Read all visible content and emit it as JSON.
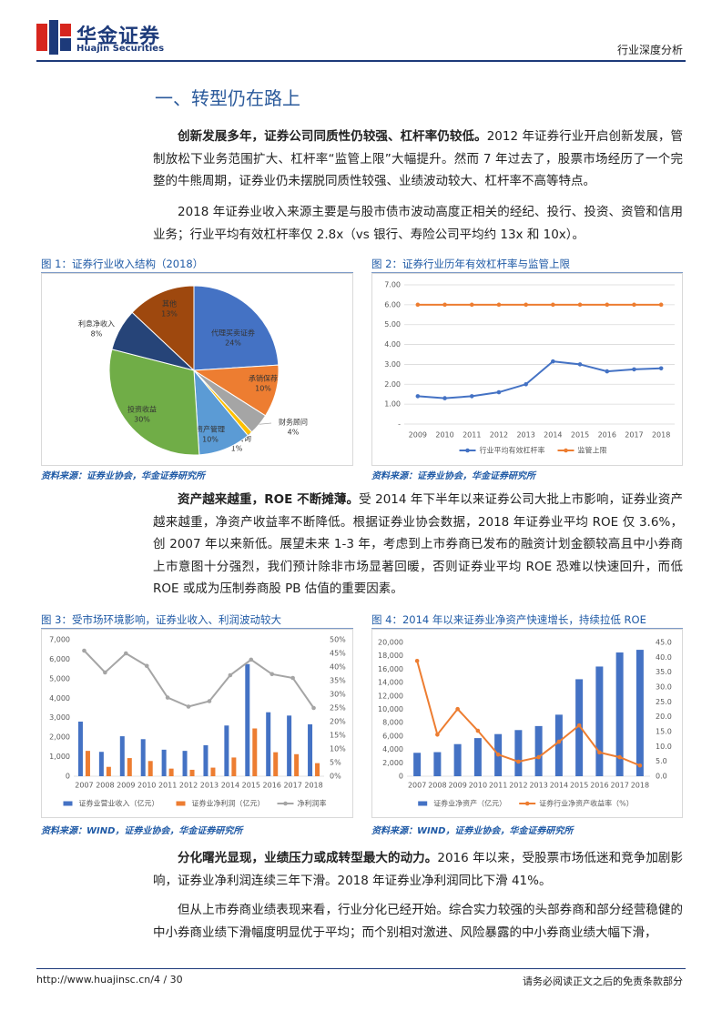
{
  "header": {
    "logo_cn": "华金证券",
    "logo_en": "Huajin Securities",
    "report_type": "行业深度分析"
  },
  "section_title": "一、转型仍在路上",
  "paragraphs": [
    {
      "lead": "创新发展多年，证券公司同质性仍较强、杠杆率仍较低。",
      "text": "2012 年证券行业开启创新发展，管制放松下业务范围扩大、杠杆率“监管上限”大幅提升。然而 7 年过去了，股票市场经历了一个完整的牛熊周期，证券业仍未摆脱同质性较强、业绩波动较大、杠杆率不高等特点。"
    },
    {
      "text": "2018 年证券业收入来源主要是与股市债市波动高度正相关的经纪、投行、投资、资管和信用业务；行业平均有效杠杆率仅 2.8x（vs 银行、寿险公司平均约 13x 和 10x）。"
    },
    {
      "lead": "资产越来越重，ROE 不断摊薄。",
      "text": "受 2014 年下半年以来证券公司大批上市影响，证券业资产越来越重，净资产收益率不断降低。根据证券业协会数据，2018 年证券业平均 ROE 仅 3.6%，创 2007 年以来新低。展望未来 1-3 年，考虑到上市券商已发布的融资计划金额较高且中小券商上市意图十分强烈，我们预计除非市场显著回暖，否则证券业平均 ROE 恐难以快速回升，而低 ROE 或成为压制券商股 PB 估值的重要因素。"
    },
    {
      "lead": "分化曙光显现，业绩压力或成转型最大的动力。",
      "text": "2016 年以来，受股票市场低迷和竞争加剧影响，证券业净利润连续三年下滑。2018 年证券业净利润同比下滑 41%。"
    },
    {
      "text": "但从上市券商业绩表现来看，行业分化已经开始。综合实力较强的头部券商和部分经营稳健的中小券商业绩下滑幅度明显优于平均；而个别相对激进、风险暴露的中小券商业绩大幅下滑，"
    }
  ],
  "chart_data": [
    {
      "type": "pie",
      "title": "图 1：证券行业收入结构（2018）",
      "source": "资料来源：证券业协会，华金证券研究所",
      "categories": [
        "代理买卖证券",
        "承销保荐",
        "财务顾问",
        "投资咨询",
        "资产管理",
        "投资收益",
        "利息净收入",
        "其他"
      ],
      "values": [
        24,
        10,
        4,
        1,
        10,
        30,
        8,
        13
      ],
      "value_labels": [
        "24%",
        "10%",
        "4%",
        "1%",
        "10%",
        "30%",
        "8%",
        "13%"
      ],
      "colors": [
        "#4472c4",
        "#ed7d31",
        "#a5a5a5",
        "#ffc000",
        "#5b9bd5",
        "#70ad47",
        "#264478",
        "#9e480e"
      ]
    },
    {
      "type": "line",
      "title": "图 2：证券行业历年有效杠杆率与监管上限",
      "source": "资料来源：证券业协会，华金证券研究所",
      "categories": [
        "2009",
        "2010",
        "2011",
        "2012",
        "2013",
        "2014",
        "2015",
        "2016",
        "2017",
        "2018"
      ],
      "series": [
        {
          "name": "行业平均有效杠杆率",
          "color": "#4472c4",
          "values": [
            1.4,
            1.3,
            1.4,
            1.6,
            2.0,
            3.15,
            3.0,
            2.65,
            2.75,
            2.8
          ]
        },
        {
          "name": "监管上限",
          "color": "#ed7d31",
          "values": [
            6,
            6,
            6,
            6,
            6,
            6,
            6,
            6,
            6,
            6
          ]
        }
      ],
      "ylim": [
        0,
        7
      ],
      "yticks": [
        {
          "value": 0,
          "label": "-"
        },
        {
          "value": 1,
          "label": "1.00"
        },
        {
          "value": 2,
          "label": "2.00"
        },
        {
          "value": 3,
          "label": "3.00"
        },
        {
          "value": 4,
          "label": "4.00"
        },
        {
          "value": 5,
          "label": "5.00"
        },
        {
          "value": 6,
          "label": "6.00"
        },
        {
          "value": 7,
          "label": "7.00"
        }
      ],
      "grid": true
    },
    {
      "type": "combo",
      "title": "图 3：受市场环境影响，证券业收入、利润波动较大",
      "source": "资料来源：WIND，证券业协会，华金证券研究所",
      "categories": [
        "2007",
        "2008",
        "2009",
        "2010",
        "2011",
        "2012",
        "2013",
        "2014",
        "2015",
        "2016",
        "2017",
        "2018"
      ],
      "series": [
        {
          "name": "证券业营业收入（亿元）",
          "type": "bar",
          "color": "#4472c4",
          "values": [
            2800,
            1250,
            2050,
            1900,
            1360,
            1300,
            1590,
            2600,
            5750,
            3280,
            3110,
            2660
          ]
        },
        {
          "name": "证券业净利润（亿元）",
          "type": "bar",
          "color": "#ed7d31",
          "values": [
            1300,
            480,
            930,
            780,
            390,
            330,
            440,
            960,
            2450,
            1230,
            1130,
            670
          ]
        },
        {
          "name": "净利润率",
          "type": "line",
          "axis": "y2",
          "color": "#a5a5a5",
          "values": [
            46,
            38,
            45,
            40.4,
            28.8,
            25.5,
            27.5,
            37,
            42.7,
            37.4,
            36,
            25
          ]
        }
      ],
      "ylim": [
        0,
        7000
      ],
      "yticks": [
        0,
        {
          "value": 1000,
          "label": "1,000"
        },
        {
          "value": 2000,
          "label": "2,000"
        },
        {
          "value": 3000,
          "label": "3,000"
        },
        {
          "value": 4000,
          "label": "4,000"
        },
        {
          "value": 5000,
          "label": "5,000"
        },
        {
          "value": 6000,
          "label": "6,000"
        },
        {
          "value": 7000,
          "label": "7,000"
        }
      ],
      "y2lim": [
        0,
        50
      ],
      "y2ticks": [
        {
          "value": 0,
          "label": "0%"
        },
        {
          "value": 5,
          "label": "5%"
        },
        {
          "value": 10,
          "label": "10%"
        },
        {
          "value": 15,
          "label": "15%"
        },
        {
          "value": 20,
          "label": "20%"
        },
        {
          "value": 25,
          "label": "25%"
        },
        {
          "value": 30,
          "label": "30%"
        },
        {
          "value": 35,
          "label": "35%"
        },
        {
          "value": 40,
          "label": "40%"
        },
        {
          "value": 45,
          "label": "45%"
        },
        {
          "value": 50,
          "label": "50%"
        }
      ],
      "grid": false
    },
    {
      "type": "combo",
      "title": "图 4：2014 年以来证券业净资产快速增长，持续拉低 ROE",
      "source": "资料来源：WIND，证券业协会，华金证券研究所",
      "categories": [
        "2007",
        "2008",
        "2009",
        "2010",
        "2011",
        "2012",
        "2013",
        "2014",
        "2015",
        "2016",
        "2017",
        "2018"
      ],
      "series": [
        {
          "name": "证券业净资产（亿元）",
          "type": "bar",
          "color": "#4472c4",
          "values": [
            3500,
            3600,
            4800,
            5700,
            6300,
            6900,
            7500,
            9200,
            14500,
            16400,
            18500,
            18900
          ]
        },
        {
          "name": "证券行业净资产收益率（%）",
          "type": "line",
          "axis": "y2",
          "color": "#ed7d31",
          "values": [
            38.8,
            14,
            22.6,
            15.3,
            7.3,
            4.9,
            6.4,
            11.6,
            17.1,
            8,
            6.4,
            3.6
          ]
        }
      ],
      "ylim": [
        0,
        20000
      ],
      "yticks": [
        0,
        {
          "value": 2000,
          "label": "2,000"
        },
        {
          "value": 4000,
          "label": "4,000"
        },
        {
          "value": 6000,
          "label": "6,000"
        },
        {
          "value": 8000,
          "label": "8,000"
        },
        {
          "value": 10000,
          "label": "10,000"
        },
        {
          "value": 12000,
          "label": "12,000"
        },
        {
          "value": 14000,
          "label": "14,000"
        },
        {
          "value": 16000,
          "label": "16,000"
        },
        {
          "value": 18000,
          "label": "18,000"
        },
        {
          "value": 20000,
          "label": "20,000"
        }
      ],
      "y2lim": [
        0,
        45
      ],
      "y2ticks": [
        {
          "value": 0,
          "label": "0.0"
        },
        {
          "value": 5,
          "label": "5.0"
        },
        {
          "value": 10,
          "label": "10.0"
        },
        {
          "value": 15,
          "label": "15.0"
        },
        {
          "value": 20,
          "label": "20.0"
        },
        {
          "value": 25,
          "label": "25.0"
        },
        {
          "value": 30,
          "label": "30.0"
        },
        {
          "value": 35,
          "label": "35.0"
        },
        {
          "value": 40,
          "label": "40.0"
        },
        {
          "value": 45,
          "label": "45.0"
        }
      ],
      "grid": false
    }
  ],
  "footer": {
    "url": "http://www.huajinsc.cn/4 / 30",
    "disclaimer": "请务必阅读正文之后的免责条款部分"
  }
}
